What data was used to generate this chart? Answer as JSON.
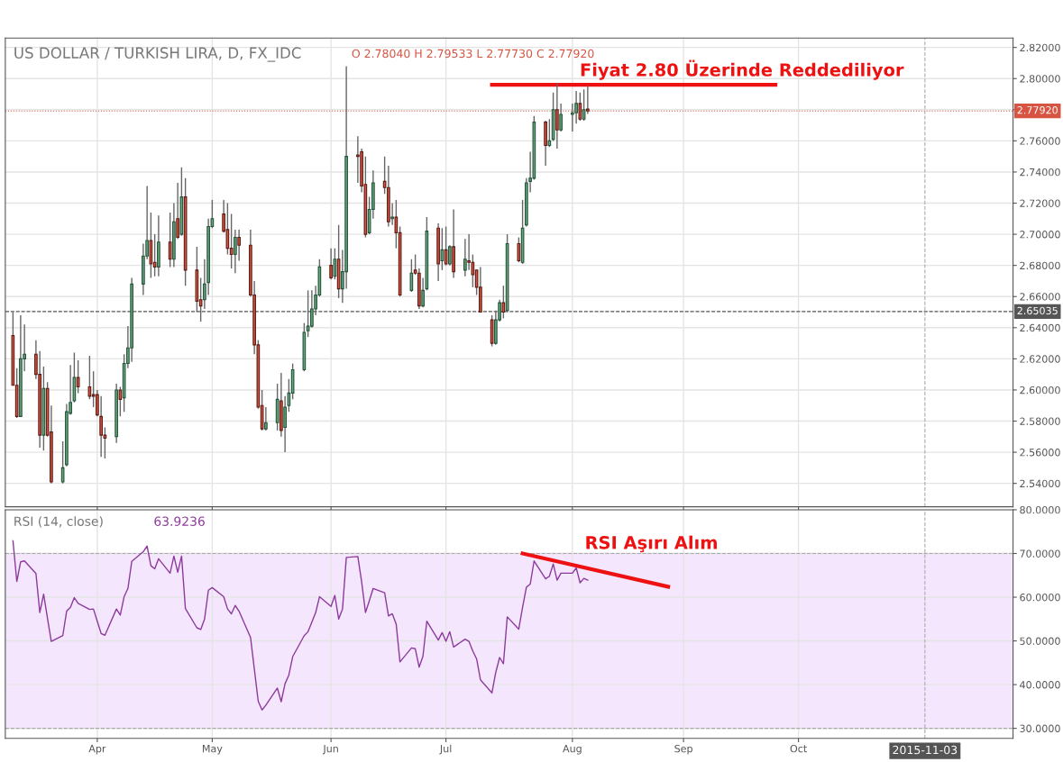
{
  "chart_data": [
    {
      "type": "candlestick",
      "title": "US DOLLAR / TURKISH LIRA, D, FX_IDC",
      "subtitle": "O 2.78040 H 2.79533 L 2.77730 C 2.77920",
      "x": [
        "2015-03-10",
        "2015-03-11",
        "2015-03-12",
        "2015-03-13",
        "2015-03-16",
        "2015-03-17",
        "2015-03-18",
        "2015-03-19",
        "2015-03-20",
        "2015-03-23",
        "2015-03-24",
        "2015-03-25",
        "2015-03-26",
        "2015-03-27",
        "2015-03-30",
        "2015-03-31",
        "2015-04-01",
        "2015-04-02",
        "2015-04-03",
        "2015-04-06",
        "2015-04-07",
        "2015-04-08",
        "2015-04-09",
        "2015-04-10",
        "2015-04-13",
        "2015-04-14",
        "2015-04-15",
        "2015-04-16",
        "2015-04-17",
        "2015-04-20",
        "2015-04-21",
        "2015-04-22",
        "2015-04-23",
        "2015-04-24",
        "2015-04-27",
        "2015-04-28",
        "2015-04-29",
        "2015-04-30",
        "2015-05-01",
        "2015-05-04",
        "2015-05-05",
        "2015-05-06",
        "2015-05-07",
        "2015-05-08",
        "2015-05-11",
        "2015-05-12",
        "2015-05-13",
        "2015-05-14",
        "2015-05-15",
        "2015-05-18",
        "2015-05-19",
        "2015-05-20",
        "2015-05-21",
        "2015-05-22",
        "2015-05-25",
        "2015-05-26",
        "2015-05-27",
        "2015-05-28",
        "2015-05-29",
        "2015-06-01",
        "2015-06-02",
        "2015-06-03",
        "2015-06-04",
        "2015-06-05",
        "2015-06-08",
        "2015-06-09",
        "2015-06-10",
        "2015-06-11",
        "2015-06-12",
        "2015-06-15",
        "2015-06-16",
        "2015-06-17",
        "2015-06-18",
        "2015-06-19",
        "2015-06-22",
        "2015-06-23",
        "2015-06-24",
        "2015-06-25",
        "2015-06-26",
        "2015-06-29",
        "2015-06-30",
        "2015-07-01",
        "2015-07-02",
        "2015-07-03",
        "2015-07-06",
        "2015-07-07",
        "2015-07-08",
        "2015-07-09",
        "2015-07-10",
        "2015-07-13",
        "2015-07-14",
        "2015-07-15",
        "2015-07-16",
        "2015-07-17",
        "2015-07-20",
        "2015-07-21",
        "2015-07-22",
        "2015-07-23",
        "2015-07-24",
        "2015-07-27",
        "2015-07-28",
        "2015-07-29",
        "2015-07-30",
        "2015-07-31",
        "2015-08-03",
        "2015-08-04",
        "2015-08-05",
        "2015-08-06",
        "2015-08-07"
      ],
      "ohlc": [
        [
          2.635,
          2.65,
          2.603,
          2.603
        ],
        [
          2.603,
          2.614,
          2.582,
          2.583
        ],
        [
          2.583,
          2.648,
          2.583,
          2.62
        ],
        [
          2.62,
          2.642,
          2.612,
          2.623
        ],
        [
          2.623,
          2.632,
          2.607,
          2.61
        ],
        [
          2.61,
          2.625,
          2.563,
          2.571
        ],
        [
          2.571,
          2.615,
          2.561,
          2.601
        ],
        [
          2.601,
          2.605,
          2.57,
          2.571
        ],
        [
          2.573,
          2.59,
          2.54,
          2.541
        ],
        [
          2.541,
          2.567,
          2.54,
          2.55
        ],
        [
          2.552,
          2.591,
          2.551,
          2.586
        ],
        [
          2.585,
          2.616,
          2.584,
          2.592
        ],
        [
          2.593,
          2.624,
          2.592,
          2.608
        ],
        [
          2.608,
          2.619,
          2.598,
          2.602
        ],
        [
          2.602,
          2.622,
          2.594,
          2.596
        ],
        [
          2.597,
          2.612,
          2.589,
          2.596
        ],
        [
          2.597,
          2.6,
          2.583,
          2.584
        ],
        [
          2.583,
          2.596,
          2.557,
          2.571
        ],
        [
          2.571,
          2.576,
          2.556,
          2.569
        ],
        [
          2.57,
          2.604,
          2.566,
          2.6
        ],
        [
          2.6,
          2.602,
          2.583,
          2.594
        ],
        [
          2.595,
          2.623,
          2.586,
          2.617
        ],
        [
          2.617,
          2.641,
          2.614,
          2.627
        ],
        [
          2.627,
          2.672,
          2.618,
          2.668
        ],
        [
          2.668,
          2.694,
          2.661,
          2.686
        ],
        [
          2.686,
          2.731,
          2.684,
          2.696
        ],
        [
          2.696,
          2.714,
          2.672,
          2.681
        ],
        [
          2.682,
          2.7,
          2.673,
          2.679
        ],
        [
          2.679,
          2.712,
          2.673,
          2.695
        ],
        [
          2.695,
          2.714,
          2.679,
          2.684
        ],
        [
          2.684,
          2.72,
          2.679,
          2.708
        ],
        [
          2.71,
          2.733,
          2.697,
          2.698
        ],
        [
          2.7,
          2.743,
          2.699,
          2.724
        ],
        [
          2.724,
          2.736,
          2.667,
          2.677
        ],
        [
          2.677,
          2.692,
          2.65,
          2.657
        ],
        [
          2.658,
          2.672,
          2.644,
          2.654
        ],
        [
          2.658,
          2.684,
          2.652,
          2.668
        ],
        [
          2.669,
          2.71,
          2.661,
          2.705
        ],
        [
          2.705,
          2.722,
          2.704,
          2.71
        ],
        [
          2.713,
          2.722,
          2.701,
          2.702
        ],
        [
          2.703,
          2.72,
          2.687,
          2.691
        ],
        [
          2.691,
          2.713,
          2.678,
          2.687
        ],
        [
          2.687,
          2.703,
          2.675,
          2.698
        ],
        [
          2.698,
          2.703,
          2.683,
          2.693
        ],
        [
          2.693,
          2.703,
          2.66,
          2.661
        ],
        [
          2.661,
          2.67,
          2.623,
          2.629
        ],
        [
          2.629,
          2.632,
          2.588,
          2.589
        ],
        [
          2.59,
          2.6,
          2.574,
          2.575
        ],
        [
          2.575,
          2.589,
          2.574,
          2.579
        ],
        [
          2.579,
          2.604,
          2.574,
          2.594
        ],
        [
          2.593,
          2.611,
          2.57,
          2.574
        ],
        [
          2.576,
          2.596,
          2.56,
          2.589
        ],
        [
          2.59,
          2.607,
          2.586,
          2.598
        ],
        [
          2.598,
          2.617,
          2.594,
          2.613
        ],
        [
          2.613,
          2.643,
          2.612,
          2.637
        ],
        [
          2.638,
          2.664,
          2.634,
          2.641
        ],
        [
          2.641,
          2.664,
          2.64,
          2.652
        ],
        [
          2.652,
          2.667,
          2.648,
          2.661
        ],
        [
          2.661,
          2.684,
          2.66,
          2.679
        ],
        [
          2.68,
          2.691,
          2.671,
          2.672
        ],
        [
          2.673,
          2.691,
          2.671,
          2.684
        ],
        [
          2.684,
          2.706,
          2.659,
          2.665
        ],
        [
          2.665,
          2.69,
          2.656,
          2.676
        ],
        [
          2.676,
          2.808,
          2.665,
          2.75
        ],
        [
          2.751,
          2.763,
          2.733,
          2.75
        ],
        [
          2.753,
          2.755,
          2.727,
          2.731
        ],
        [
          2.732,
          2.75,
          2.698,
          2.7
        ],
        [
          2.701,
          2.724,
          2.7,
          2.716
        ],
        [
          2.716,
          2.741,
          2.71,
          2.733
        ],
        [
          2.734,
          2.75,
          2.726,
          2.73
        ],
        [
          2.73,
          2.744,
          2.705,
          2.708
        ],
        [
          2.71,
          2.72,
          2.706,
          2.711
        ],
        [
          2.711,
          2.722,
          2.691,
          2.701
        ],
        [
          2.701,
          2.705,
          2.66,
          2.661
        ],
        [
          2.664,
          2.684,
          2.663,
          2.675
        ],
        [
          2.677,
          2.687,
          2.674,
          2.675
        ],
        [
          2.675,
          2.678,
          2.652,
          2.654
        ],
        [
          2.654,
          2.672,
          2.653,
          2.664
        ],
        [
          2.665,
          2.711,
          2.664,
          2.702
        ],
        [
          2.704,
          2.707,
          2.67,
          2.681
        ],
        [
          2.683,
          2.704,
          2.677,
          2.69
        ],
        [
          2.69,
          2.705,
          2.68,
          2.681
        ],
        [
          2.681,
          2.693,
          2.68,
          2.692
        ],
        [
          2.692,
          2.716,
          2.672,
          2.676
        ],
        [
          2.677,
          2.697,
          2.673,
          2.684
        ],
        [
          2.683,
          2.7,
          2.677,
          2.682
        ],
        [
          2.682,
          2.687,
          2.666,
          2.674
        ],
        [
          2.677,
          2.677,
          2.661,
          2.666
        ],
        [
          2.666,
          2.679,
          2.65,
          2.65
        ],
        [
          2.645,
          2.648,
          2.628,
          2.63
        ],
        [
          2.63,
          2.651,
          2.629,
          2.645
        ],
        [
          2.645,
          2.658,
          2.644,
          2.656
        ],
        [
          2.656,
          2.667,
          2.646,
          2.65
        ],
        [
          2.651,
          2.7,
          2.65,
          2.694
        ],
        [
          2.694,
          2.698,
          2.682,
          2.683
        ],
        [
          2.682,
          2.722,
          2.681,
          2.704
        ],
        [
          2.706,
          2.736,
          2.705,
          2.733
        ],
        [
          2.734,
          2.753,
          2.727,
          2.736
        ],
        [
          2.736,
          2.776,
          2.735,
          2.772
        ],
        [
          2.772,
          2.773,
          2.744,
          2.757
        ],
        [
          2.757,
          2.774,
          2.756,
          2.76
        ],
        [
          2.761,
          2.791,
          2.76,
          2.78
        ],
        [
          2.78,
          2.797,
          2.755,
          2.767
        ],
        [
          2.767,
          2.784,
          2.766,
          2.777
        ],
        [
          2.777,
          2.784,
          2.766,
          2.778
        ],
        [
          2.778,
          2.792,
          2.771,
          2.784
        ],
        [
          2.784,
          2.791,
          2.773,
          2.774
        ],
        [
          2.774,
          2.793,
          2.773,
          2.78
        ],
        [
          2.7804,
          2.79533,
          2.7773,
          2.7792
        ]
      ],
      "colors": [
        "#d75442",
        "#d75442",
        "#6ba583",
        "#6ba583",
        "#d75442",
        "#d75442",
        "#6ba583",
        "#d75442",
        "#d75442",
        "#6ba583",
        "#6ba583",
        "#6ba583",
        "#6ba583",
        "#d75442",
        "#d75442",
        "#d75442",
        "#d75442",
        "#d75442",
        "#d75442",
        "#6ba583",
        "#d75442",
        "#6ba583",
        "#6ba583",
        "#6ba583",
        "#6ba583",
        "#6ba583",
        "#d75442",
        "#d75442",
        "#6ba583",
        "#d75442",
        "#6ba583",
        "#d75442",
        "#6ba583",
        "#d75442",
        "#d75442",
        "#d75442",
        "#6ba583",
        "#6ba583",
        "#6ba583",
        "#d75442",
        "#d75442",
        "#d75442",
        "#6ba583",
        "#d75442",
        "#d75442",
        "#d75442",
        "#d75442",
        "#d75442",
        "#6ba583",
        "#6ba583",
        "#d75442",
        "#6ba583",
        "#6ba583",
        "#6ba583",
        "#6ba583",
        "#6ba583",
        "#6ba583",
        "#6ba583",
        "#6ba583",
        "#d75442",
        "#6ba583",
        "#d75442",
        "#6ba583",
        "#6ba583",
        "#d75442",
        "#d75442",
        "#d75442",
        "#6ba583",
        "#6ba583",
        "#d75442",
        "#d75442",
        "#6ba583",
        "#d75442",
        "#d75442",
        "#6ba583",
        "#d75442",
        "#d75442",
        "#6ba583",
        "#6ba583",
        "#d75442",
        "#6ba583",
        "#d75442",
        "#6ba583",
        "#d75442",
        "#6ba583",
        "#d75442",
        "#d75442",
        "#d75442",
        "#d75442",
        "#d75442",
        "#6ba583",
        "#6ba583",
        "#d75442",
        "#6ba583",
        "#d75442",
        "#6ba583",
        "#6ba583",
        "#6ba583",
        "#6ba583",
        "#d75442",
        "#6ba583",
        "#6ba583",
        "#d75442",
        "#6ba583",
        "#6ba583",
        "#6ba583",
        "#d75442",
        "#6ba583",
        "#d75442"
      ],
      "series": [
        {
          "type": "line",
          "x": [
            "2015-07-13",
            "2015-09-25"
          ],
          "values": [
            2.796,
            2.796
          ],
          "color": "#ee1111"
        }
      ],
      "ref_lines": [
        {
          "axis": "y",
          "value": 2.7792,
          "label": "2.77920",
          "color": "#d75442",
          "line_style": "dotted"
        },
        {
          "axis": "y",
          "value": 2.65035,
          "label": "2.65035",
          "color": "#555555",
          "line_style": "dashed"
        },
        {
          "axis": "x",
          "value": "2015-11-03",
          "color": "#aaaaaa",
          "line_style": "dashed"
        }
      ],
      "annotations": [
        "Fiyat 2.80 Üzerinde Reddediliyor"
      ],
      "xlim": [
        "2015-03-08",
        "2015-11-26"
      ],
      "xticks": [
        {
          "value": "2015-04-01",
          "label": null
        },
        {
          "value": "2015-05-01",
          "label": null
        },
        {
          "value": "2015-06-01",
          "label": null
        },
        {
          "value": "2015-07-01",
          "label": null
        },
        {
          "value": "2015-08-03",
          "label": null
        },
        {
          "value": "2015-09-01",
          "label": null
        },
        {
          "value": "2015-10-01",
          "label": null
        }
      ],
      "ylim": [
        2.525,
        2.826
      ],
      "yticks": [
        {
          "value": 2.54,
          "label": "2.54000"
        },
        {
          "value": 2.56,
          "label": "2.56000"
        },
        {
          "value": 2.58,
          "label": "2.58000"
        },
        {
          "value": 2.6,
          "label": "2.60000"
        },
        {
          "value": 2.62,
          "label": "2.62000"
        },
        {
          "value": 2.64,
          "label": "2.64000"
        },
        {
          "value": 2.66,
          "label": "2.66000"
        },
        {
          "value": 2.68,
          "label": "2.68000"
        },
        {
          "value": 2.7,
          "label": "2.70000"
        },
        {
          "value": 2.72,
          "label": "2.72000"
        },
        {
          "value": 2.74,
          "label": "2.74000"
        },
        {
          "value": 2.76,
          "label": "2.76000"
        },
        {
          "value": 2.78,
          "label": null
        },
        {
          "value": 2.8,
          "label": "2.80000"
        },
        {
          "value": 2.82,
          "label": "2.82000"
        }
      ],
      "grid": true,
      "tick_labels": "y"
    },
    {
      "type": "line",
      "title": "RSI (14, close)",
      "x": [
        "2015-03-10",
        "2015-03-11",
        "2015-03-12",
        "2015-03-13",
        "2015-03-16",
        "2015-03-17",
        "2015-03-18",
        "2015-03-19",
        "2015-03-20",
        "2015-03-23",
        "2015-03-24",
        "2015-03-25",
        "2015-03-26",
        "2015-03-27",
        "2015-03-30",
        "2015-03-31",
        "2015-04-01",
        "2015-04-02",
        "2015-04-03",
        "2015-04-06",
        "2015-04-07",
        "2015-04-08",
        "2015-04-09",
        "2015-04-10",
        "2015-04-13",
        "2015-04-14",
        "2015-04-15",
        "2015-04-16",
        "2015-04-17",
        "2015-04-20",
        "2015-04-21",
        "2015-04-22",
        "2015-04-23",
        "2015-04-24",
        "2015-04-27",
        "2015-04-28",
        "2015-04-29",
        "2015-04-30",
        "2015-05-01",
        "2015-05-04",
        "2015-05-05",
        "2015-05-06",
        "2015-05-07",
        "2015-05-08",
        "2015-05-11",
        "2015-05-12",
        "2015-05-13",
        "2015-05-14",
        "2015-05-15",
        "2015-05-18",
        "2015-05-19",
        "2015-05-20",
        "2015-05-21",
        "2015-05-22",
        "2015-05-25",
        "2015-05-26",
        "2015-05-27",
        "2015-05-28",
        "2015-05-29",
        "2015-06-01",
        "2015-06-02",
        "2015-06-03",
        "2015-06-04",
        "2015-06-05",
        "2015-06-08",
        "2015-06-09",
        "2015-06-10",
        "2015-06-11",
        "2015-06-12",
        "2015-06-15",
        "2015-06-16",
        "2015-06-17",
        "2015-06-18",
        "2015-06-19",
        "2015-06-22",
        "2015-06-23",
        "2015-06-24",
        "2015-06-25",
        "2015-06-26",
        "2015-06-29",
        "2015-06-30",
        "2015-07-01",
        "2015-07-02",
        "2015-07-03",
        "2015-07-06",
        "2015-07-07",
        "2015-07-08",
        "2015-07-09",
        "2015-07-10",
        "2015-07-13",
        "2015-07-14",
        "2015-07-15",
        "2015-07-16",
        "2015-07-17",
        "2015-07-20",
        "2015-07-21",
        "2015-07-22",
        "2015-07-23",
        "2015-07-24",
        "2015-07-27",
        "2015-07-28",
        "2015-07-29",
        "2015-07-30",
        "2015-07-31",
        "2015-08-03",
        "2015-08-04",
        "2015-08-05",
        "2015-08-06",
        "2015-08-07"
      ],
      "series": [
        {
          "color": "#8e3a9c",
          "values": [
            72.9,
            63.6,
            68.1,
            68.3,
            65.4,
            56.5,
            60.7,
            55.2,
            49.9,
            51.2,
            56.8,
            57.7,
            59.9,
            58.6,
            57.2,
            57.3,
            54.5,
            51.7,
            51.3,
            57.3,
            55.9,
            60.1,
            62.0,
            68.2,
            70.4,
            71.7,
            67.2,
            66.5,
            68.8,
            65.5,
            69.4,
            65.7,
            69.4,
            57.4,
            53.0,
            52.6,
            55.0,
            61.6,
            62.2,
            60.1,
            57.3,
            56.2,
            58.1,
            56.8,
            50.8,
            43.5,
            36.2,
            34.2,
            35.3,
            39.2,
            36.1,
            40.2,
            42.2,
            46.4,
            51.2,
            52.1,
            54.3,
            56.5,
            60.1,
            57.9,
            60.4,
            55.0,
            57.3,
            69.1,
            69.3,
            63.5,
            56.5,
            59.2,
            62.0,
            61.0,
            55.7,
            56.2,
            53.9,
            45.2,
            48.4,
            48.2,
            44.0,
            46.5,
            54.5,
            50.2,
            51.9,
            49.9,
            52.1,
            48.6,
            50.4,
            49.9,
            47.7,
            45.9,
            41.1,
            38.1,
            42.8,
            46.2,
            44.8,
            55.5,
            52.7,
            57.7,
            62.3,
            63.0,
            68.3,
            64.2,
            64.8,
            67.6,
            63.9,
            65.5,
            65.5,
            66.7,
            63.3,
            64.3,
            63.9
          ]
        },
        {
          "type": "line",
          "x": [
            "2015-07-21",
            "2015-08-28"
          ],
          "values": [
            70.0,
            62.4
          ],
          "color": "#ee1111"
        }
      ],
      "bands": [
        {
          "axis": "y",
          "from": 30,
          "to": 70,
          "color": "#f3e6fd"
        }
      ],
      "ref_lines": [
        {
          "axis": "x",
          "value": "2015-11-03",
          "label": "2015-11-03",
          "color": "#aaaaaa",
          "line_style": "dashed"
        }
      ],
      "annotations": [
        "63.9236",
        "RSI Aşırı Alım"
      ],
      "xlim": [
        "2015-03-08",
        "2015-11-26"
      ],
      "xticks": [
        {
          "value": "2015-04-01",
          "label": "Apr"
        },
        {
          "value": "2015-05-01",
          "label": "May"
        },
        {
          "value": "2015-06-01",
          "label": "Jun"
        },
        {
          "value": "2015-07-01",
          "label": "Jul"
        },
        {
          "value": "2015-08-03",
          "label": "Aug"
        },
        {
          "value": "2015-09-01",
          "label": "Sep"
        },
        {
          "value": "2015-10-01",
          "label": "Oct"
        }
      ],
      "ylim": [
        27.7,
        80
      ],
      "yticks": [
        {
          "value": 30,
          "label": "30.0000"
        },
        {
          "value": 40,
          "label": "40.0000"
        },
        {
          "value": 50,
          "label": "50.0000"
        },
        {
          "value": 60,
          "label": "60.0000"
        },
        {
          "value": 70,
          "label": "70.0000"
        },
        {
          "value": 80,
          "label": "80.0000"
        }
      ],
      "grid": true
    }
  ]
}
